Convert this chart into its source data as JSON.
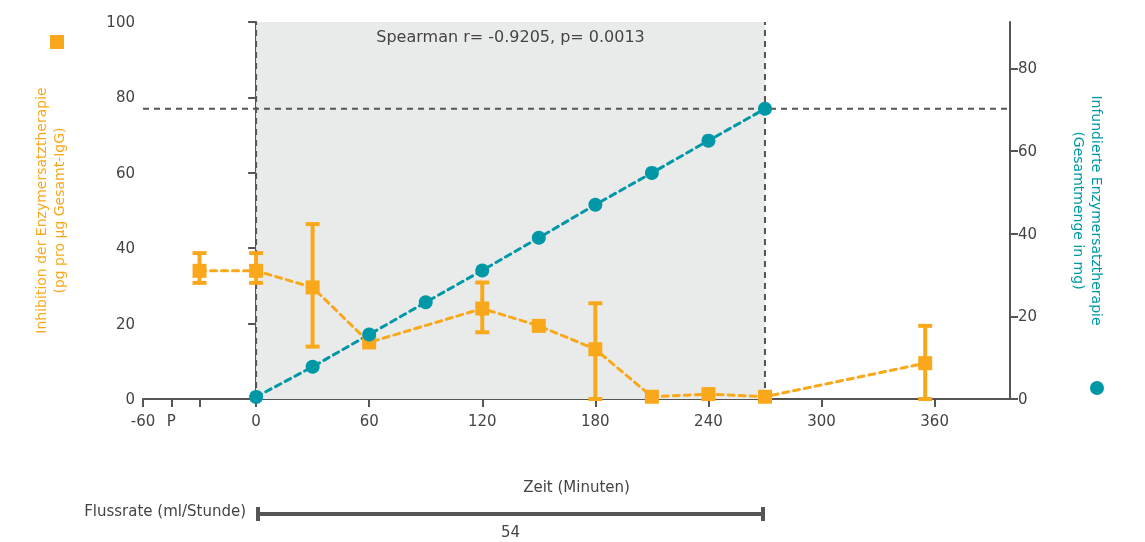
{
  "chart_data": {
    "type": "line",
    "xlabel": "Zeit (Minuten)",
    "ylabel": "Inhibition der Enzymersatztherapie\n(pg pro µg Gesamt-IgG)",
    "y2label": "Infundierte Enzymersatztherapie\n(Gesamtmenge in mg)",
    "xlim": [
      -60,
      400
    ],
    "xticks": [
      -60,
      {
        "value": -45,
        "label": "P"
      },
      {
        "value": -30,
        "label": null
      },
      0,
      60,
      120,
      180,
      240,
      300,
      360
    ],
    "ylim": [
      0,
      100
    ],
    "yticks": [
      0,
      20,
      40,
      60,
      80,
      100
    ],
    "y2lim": [
      0,
      91.2
    ],
    "y2ticks": [
      0,
      20,
      40,
      60,
      80
    ],
    "series": [
      {
        "color": "#f9a81c",
        "marker": "square",
        "line_style": "dashed",
        "x": [
          -30,
          0,
          30,
          60,
          120,
          150,
          180,
          210,
          240,
          270,
          355
        ],
        "values": [
          34,
          34,
          29.6,
          15,
          24,
          19.4,
          13.2,
          0.6,
          1.3,
          0.6,
          9.5
        ],
        "errors": [
          [
            30.8,
            38.7
          ],
          [
            30.8,
            38.7
          ],
          [
            13.9,
            46.4
          ],
          null,
          [
            17.7,
            30.9
          ],
          null,
          [
            0,
            25.4
          ],
          null,
          null,
          null,
          [
            0,
            19.4
          ]
        ]
      },
      {
        "color": "#0097a7",
        "marker": "circle",
        "line_style": "dashed",
        "axis": "y2",
        "x": [
          0,
          30,
          60,
          90,
          120,
          150,
          180,
          210,
          240,
          270
        ],
        "values": [
          0.5,
          7.8,
          15.6,
          23.4,
          31.1,
          39,
          47,
          54.7,
          62.5,
          70.2
        ]
      }
    ],
    "ref_lines": [
      {
        "axis": "x",
        "value": 0,
        "color": "#555555",
        "line_style": "dashed"
      },
      {
        "axis": "x",
        "value": 270,
        "color": "#555555",
        "line_style": "dashed"
      },
      {
        "axis": "y2",
        "value": 70.2,
        "color": "#555555",
        "line_style": "dashed"
      }
    ],
    "bands": [
      {
        "axis": "x",
        "from": 0,
        "to": 270,
        "label": "Spearman r= -0.9205, p= 0.0013",
        "color": "#e9ebea"
      }
    ],
    "annotations": [
      "Flussrate (ml/Stunde)",
      "54"
    ],
    "grid": false
  }
}
